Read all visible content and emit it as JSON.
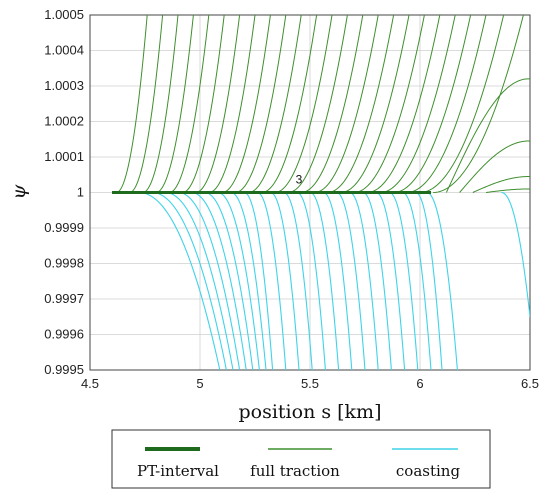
{
  "chart_data": {
    "type": "line",
    "xlabel": "position s [km]",
    "ylabel": "ψ",
    "xlim": [
      4.5,
      6.5
    ],
    "ylim": [
      0.9995,
      1.0005
    ],
    "xticks": [
      "4.5",
      "5",
      "5.5",
      "6",
      "6.5"
    ],
    "yticks": [
      "0.9995",
      "0.9996",
      "0.9997",
      "0.9998",
      "0.9999",
      "1",
      "1.0001",
      "1.0002",
      "1.0003",
      "1.0004",
      "1.0005"
    ],
    "grid": true,
    "legend_position": "bottom",
    "annotation": {
      "text": "3",
      "x": 5.45,
      "y": 1.00002
    },
    "colors": {
      "pt_interval": "#1e6b1e",
      "full_traction": "#3f8f2e",
      "coasting": "#3fd3ea"
    },
    "series": [
      {
        "name": "PT-interval",
        "x": [
          4.6,
          6.05
        ],
        "y": [
          1.0,
          1.0
        ]
      },
      {
        "name": "full traction",
        "start_x": [
          4.62,
          4.68,
          4.74,
          4.8,
          4.86,
          4.92,
          4.98,
          5.04,
          5.1,
          5.16,
          5.22,
          5.28,
          5.34,
          5.4,
          5.46,
          5.52,
          5.58,
          5.64,
          5.7,
          5.76,
          5.82,
          5.88,
          5.94,
          6.0,
          6.06,
          6.12,
          6.18,
          6.24,
          6.3
        ],
        "exit_x": [
          4.76,
          4.83,
          4.9,
          4.97,
          5.04,
          5.11,
          5.18,
          5.25,
          5.32,
          5.39,
          5.46,
          5.53,
          5.6,
          5.67,
          5.74,
          5.81,
          5.88,
          5.95,
          6.02,
          6.09,
          6.16,
          6.23,
          6.3,
          6.38,
          6.47
        ],
        "end_y": [
          1.00032,
          1.000145,
          1.000045,
          1.00001
        ]
      },
      {
        "name": "coasting",
        "start_x": [
          4.72,
          4.78,
          4.84,
          4.9,
          4.96,
          5.02,
          5.08,
          5.14,
          5.2,
          5.26,
          5.32,
          5.38,
          5.44,
          5.5,
          5.56,
          5.62,
          5.68,
          5.74,
          5.8,
          5.86,
          5.92,
          5.98,
          6.03,
          6.37
        ],
        "end_x": [
          5.09,
          5.12,
          5.15,
          5.18,
          5.21,
          5.24,
          5.27,
          5.3,
          5.33,
          5.39,
          5.45,
          5.51,
          5.57,
          5.63,
          5.69,
          5.75,
          5.81,
          5.87,
          5.93,
          5.99,
          6.05,
          6.1,
          6.17,
          6.5
        ],
        "end_y": [
          0.9995,
          0.9995,
          0.9995,
          0.9995,
          0.9995,
          0.9995,
          0.9995,
          0.9995,
          0.9995,
          0.9995,
          0.9995,
          0.9995,
          0.9995,
          0.9995,
          0.9995,
          0.9995,
          0.9995,
          0.9995,
          0.9995,
          0.9995,
          0.9995,
          0.9995,
          0.9995,
          0.99965
        ]
      }
    ],
    "legend": [
      {
        "label": "PT-interval",
        "series": "PT-interval"
      },
      {
        "label": "full traction",
        "series": "full traction"
      },
      {
        "label": "coasting",
        "series": "coasting"
      }
    ]
  }
}
